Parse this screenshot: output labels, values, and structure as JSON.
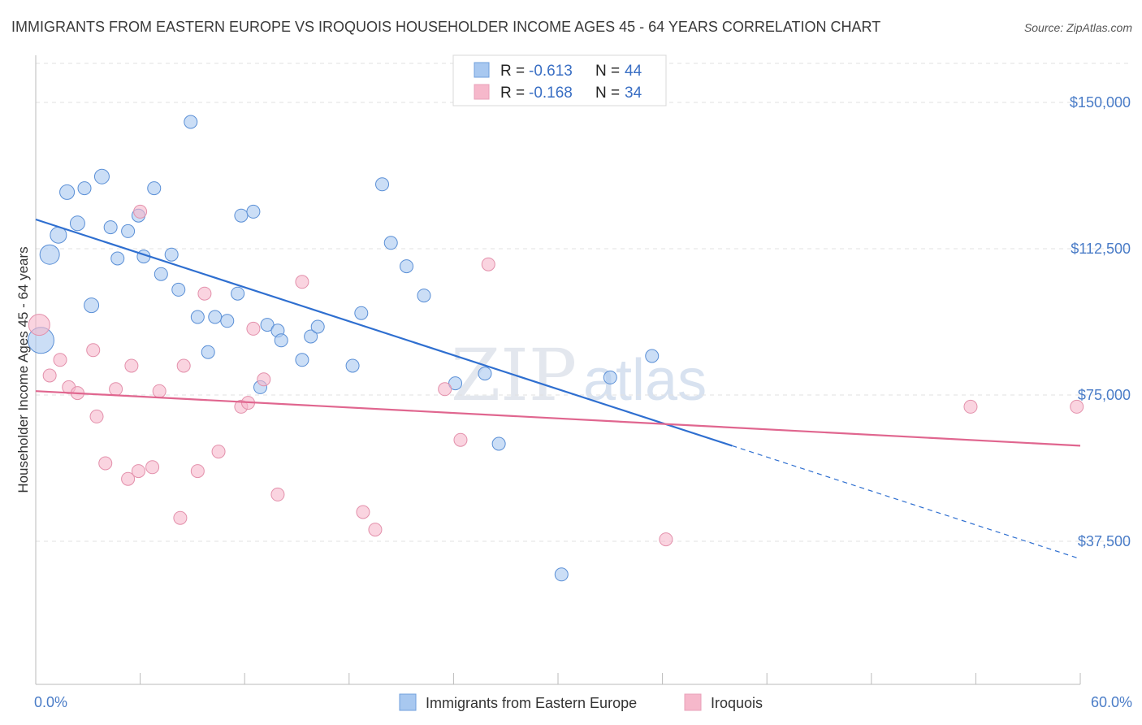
{
  "title": "IMMIGRANTS FROM EASTERN EUROPE VS IROQUOIS HOUSEHOLDER INCOME AGES 45 - 64 YEARS CORRELATION CHART",
  "source": "Source: ZipAtlas.com",
  "watermark": {
    "zip": "ZIP",
    "atlas": "atlas"
  },
  "legend": {
    "items": [
      {
        "r_label": "R = ",
        "r_value": "-0.613",
        "n_label": "N = ",
        "n_value": "44",
        "color": "#a8c8f0"
      },
      {
        "r_label": "R = ",
        "r_value": "-0.168",
        "n_label": "N = ",
        "n_value": "34",
        "color": "#f6b8cb"
      }
    ]
  },
  "bottom_legend": {
    "items": [
      {
        "label": "Immigrants from Eastern Europe",
        "color": "#a8c8f0"
      },
      {
        "label": "Iroquois",
        "color": "#f6b8cb"
      }
    ]
  },
  "chart_data": {
    "type": "scatter",
    "xlabel": "",
    "ylabel": "Householder Income Ages 45 - 64 years",
    "xlim": [
      0,
      60
    ],
    "ylim": [
      0,
      160000
    ],
    "x_tick_labels": [
      "0.0%",
      "60.0%"
    ],
    "y_ticks": [
      37500,
      75000,
      112500,
      150000
    ],
    "y_tick_labels": [
      "$37,500",
      "$75,000",
      "$112,500",
      "$150,000"
    ],
    "grid": true,
    "legend_position": "top-center",
    "series": [
      {
        "name": "Immigrants from Eastern Europe",
        "color": "#a8c8f0",
        "stroke": "#5a8fd6",
        "trend_color": "#2f6fd0",
        "trend": {
          "x_start": 0,
          "y_start": 120000,
          "x_solid_end": 40,
          "x_end": 60,
          "y_end": 33000
        },
        "points": [
          {
            "x": 0.3,
            "y": 89000,
            "s": 16
          },
          {
            "x": 0.8,
            "y": 111000,
            "s": 12
          },
          {
            "x": 1.3,
            "y": 116000,
            "s": 10
          },
          {
            "x": 1.8,
            "y": 127000,
            "s": 9
          },
          {
            "x": 2.4,
            "y": 119000,
            "s": 9
          },
          {
            "x": 2.8,
            "y": 128000,
            "s": 8
          },
          {
            "x": 3.2,
            "y": 98000,
            "s": 9
          },
          {
            "x": 3.8,
            "y": 131000,
            "s": 9
          },
          {
            "x": 4.3,
            "y": 118000,
            "s": 8
          },
          {
            "x": 4.7,
            "y": 110000,
            "s": 8
          },
          {
            "x": 5.3,
            "y": 117000,
            "s": 8
          },
          {
            "x": 5.9,
            "y": 121000,
            "s": 8
          },
          {
            "x": 6.2,
            "y": 110500,
            "s": 8
          },
          {
            "x": 6.8,
            "y": 128000,
            "s": 8
          },
          {
            "x": 7.2,
            "y": 106000,
            "s": 8
          },
          {
            "x": 7.8,
            "y": 111000,
            "s": 8
          },
          {
            "x": 8.2,
            "y": 102000,
            "s": 8
          },
          {
            "x": 8.9,
            "y": 145000,
            "s": 8
          },
          {
            "x": 9.3,
            "y": 95000,
            "s": 8
          },
          {
            "x": 9.9,
            "y": 86000,
            "s": 8
          },
          {
            "x": 10.3,
            "y": 95000,
            "s": 8
          },
          {
            "x": 11.0,
            "y": 94000,
            "s": 8
          },
          {
            "x": 11.6,
            "y": 101000,
            "s": 8
          },
          {
            "x": 11.8,
            "y": 121000,
            "s": 8
          },
          {
            "x": 12.5,
            "y": 122000,
            "s": 8
          },
          {
            "x": 12.9,
            "y": 77000,
            "s": 8
          },
          {
            "x": 13.3,
            "y": 93000,
            "s": 8
          },
          {
            "x": 13.9,
            "y": 91500,
            "s": 8
          },
          {
            "x": 14.1,
            "y": 89000,
            "s": 8
          },
          {
            "x": 15.3,
            "y": 84000,
            "s": 8
          },
          {
            "x": 15.8,
            "y": 90000,
            "s": 8
          },
          {
            "x": 16.2,
            "y": 92500,
            "s": 8
          },
          {
            "x": 18.2,
            "y": 82500,
            "s": 8
          },
          {
            "x": 18.7,
            "y": 96000,
            "s": 8
          },
          {
            "x": 19.9,
            "y": 129000,
            "s": 8
          },
          {
            "x": 20.4,
            "y": 114000,
            "s": 8
          },
          {
            "x": 21.3,
            "y": 108000,
            "s": 8
          },
          {
            "x": 22.3,
            "y": 100500,
            "s": 8
          },
          {
            "x": 24.1,
            "y": 78000,
            "s": 8
          },
          {
            "x": 25.8,
            "y": 80500,
            "s": 8
          },
          {
            "x": 26.6,
            "y": 62500,
            "s": 8
          },
          {
            "x": 30.2,
            "y": 29000,
            "s": 8
          },
          {
            "x": 33.0,
            "y": 79500,
            "s": 8
          },
          {
            "x": 35.4,
            "y": 85000,
            "s": 8
          }
        ]
      },
      {
        "name": "Iroquois",
        "color": "#f6b8cb",
        "stroke": "#e390ab",
        "trend_color": "#e0668f",
        "trend": {
          "x_start": 0,
          "y_start": 76000,
          "x_solid_end": 60,
          "x_end": 60,
          "y_end": 62000
        },
        "points": [
          {
            "x": 0.2,
            "y": 93000,
            "s": 13
          },
          {
            "x": 0.8,
            "y": 80000,
            "s": 8
          },
          {
            "x": 1.4,
            "y": 84000,
            "s": 8
          },
          {
            "x": 1.9,
            "y": 77000,
            "s": 8
          },
          {
            "x": 2.4,
            "y": 75500,
            "s": 8
          },
          {
            "x": 3.3,
            "y": 86500,
            "s": 8
          },
          {
            "x": 3.5,
            "y": 69500,
            "s": 8
          },
          {
            "x": 4.0,
            "y": 57500,
            "s": 8
          },
          {
            "x": 4.6,
            "y": 76500,
            "s": 8
          },
          {
            "x": 5.3,
            "y": 53500,
            "s": 8
          },
          {
            "x": 5.5,
            "y": 82500,
            "s": 8
          },
          {
            "x": 5.9,
            "y": 55500,
            "s": 8
          },
          {
            "x": 6.0,
            "y": 122000,
            "s": 8
          },
          {
            "x": 6.7,
            "y": 56500,
            "s": 8
          },
          {
            "x": 7.1,
            "y": 76000,
            "s": 8
          },
          {
            "x": 8.3,
            "y": 43500,
            "s": 8
          },
          {
            "x": 8.5,
            "y": 82500,
            "s": 8
          },
          {
            "x": 9.3,
            "y": 55500,
            "s": 8
          },
          {
            "x": 9.7,
            "y": 101000,
            "s": 8
          },
          {
            "x": 10.5,
            "y": 60500,
            "s": 8
          },
          {
            "x": 11.8,
            "y": 72000,
            "s": 8
          },
          {
            "x": 12.2,
            "y": 73000,
            "s": 8
          },
          {
            "x": 12.5,
            "y": 92000,
            "s": 8
          },
          {
            "x": 13.1,
            "y": 79000,
            "s": 8
          },
          {
            "x": 13.9,
            "y": 49500,
            "s": 8
          },
          {
            "x": 15.3,
            "y": 104000,
            "s": 8
          },
          {
            "x": 18.8,
            "y": 45000,
            "s": 8
          },
          {
            "x": 19.5,
            "y": 40500,
            "s": 8
          },
          {
            "x": 23.5,
            "y": 76500,
            "s": 8
          },
          {
            "x": 24.4,
            "y": 63500,
            "s": 8
          },
          {
            "x": 26.0,
            "y": 108500,
            "s": 8
          },
          {
            "x": 36.2,
            "y": 38000,
            "s": 8
          },
          {
            "x": 53.7,
            "y": 72000,
            "s": 8
          },
          {
            "x": 59.8,
            "y": 72000,
            "s": 8
          }
        ]
      }
    ]
  }
}
